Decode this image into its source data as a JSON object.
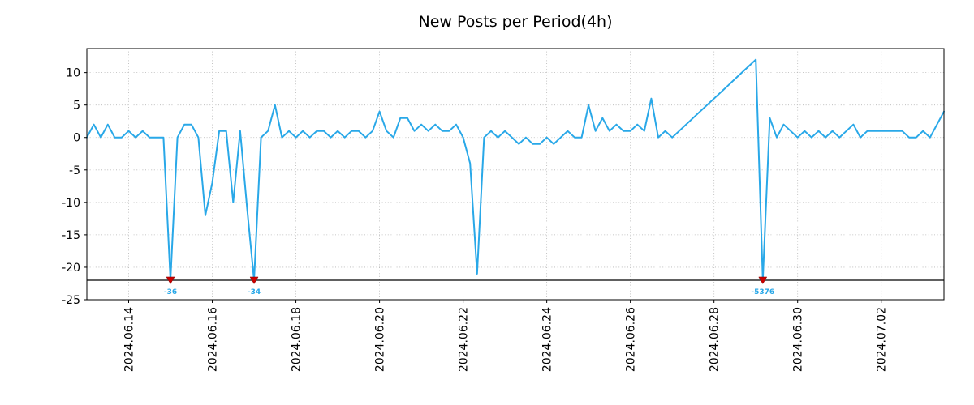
{
  "chart_data": {
    "type": "line",
    "title": "New Posts per Period(4h)",
    "x_start": "2024.06.13 00:00",
    "x_step_hours": 4,
    "x_range_days": [
      0,
      20.5
    ],
    "x_tick_positions_days": [
      1,
      3,
      5,
      7,
      9,
      11,
      13,
      15,
      17,
      19
    ],
    "x_tick_labels": [
      "2024.06.14",
      "2024.06.16",
      "2024.06.18",
      "2024.06.20",
      "2024.06.22",
      "2024.06.24",
      "2024.06.26",
      "2024.06.28",
      "2024.06.30",
      "2024.07.02"
    ],
    "y_ticks": [
      10,
      5,
      0,
      -5,
      -10,
      -15,
      -20,
      -25
    ],
    "ylim": [
      -25,
      13.7
    ],
    "grid": true,
    "legend": false,
    "line_color": "#29A8E8",
    "marker_color": "#CC0000",
    "annotation_color": "#29A8E8",
    "clip_line_value": -22,
    "clip_line_color": "#000000",
    "values": [
      0,
      2,
      0,
      2,
      0,
      0,
      1,
      0,
      1,
      0,
      0,
      0,
      -36,
      0,
      2,
      2,
      0,
      -12,
      -7,
      1,
      1,
      -10,
      1,
      -11,
      -34,
      0,
      1,
      5,
      0,
      1,
      0,
      1,
      0,
      1,
      1,
      0,
      1,
      0,
      1,
      1,
      0,
      1,
      4,
      1,
      0,
      3,
      3,
      1,
      2,
      1,
      2,
      1,
      1,
      2,
      0,
      -4,
      -21,
      0,
      1,
      0,
      1,
      0,
      -1,
      0,
      -1,
      -1,
      0,
      -1,
      0,
      1,
      0,
      0,
      5,
      1,
      3,
      1,
      2,
      1,
      1,
      2,
      1,
      6,
      0,
      1,
      0,
      1,
      2,
      3,
      4,
      5,
      6,
      7,
      8,
      9,
      10,
      11,
      12,
      -5376,
      3,
      0,
      2,
      1,
      0,
      1,
      0,
      1,
      0,
      1,
      0,
      1,
      2,
      0,
      1,
      1,
      1,
      1,
      1,
      1,
      0,
      0,
      1,
      0,
      2,
      4
    ],
    "annotations": [
      {
        "index": 12,
        "value": -36,
        "label": "-36"
      },
      {
        "index": 24,
        "value": -34,
        "label": "-34"
      },
      {
        "index": 97,
        "value": -5376,
        "label": "-5376"
      }
    ]
  }
}
